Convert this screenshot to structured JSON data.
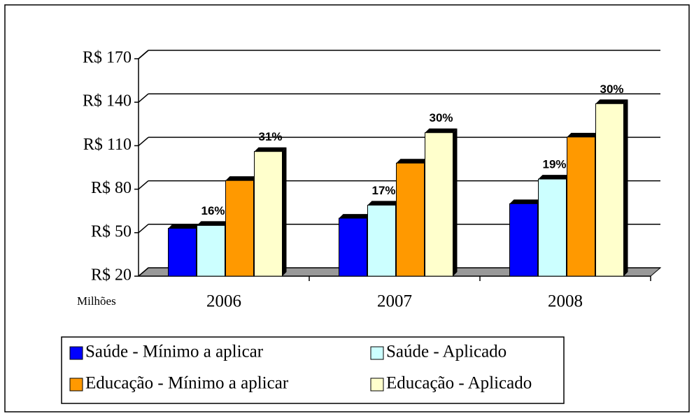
{
  "chart_data": {
    "type": "bar",
    "categories": [
      "2006",
      "2007",
      "2008"
    ],
    "series": [
      {
        "name": "Saúde - Mínimo a aplicar",
        "color": "#0000ff",
        "values": [
          53,
          60,
          70
        ]
      },
      {
        "name": "Saúde - Aplicado",
        "color": "#ccffff",
        "values": [
          55,
          69,
          87
        ],
        "percent_labels": [
          "16%",
          "17%",
          "19%"
        ]
      },
      {
        "name": "Educação - Mínimo a aplicar",
        "color": "#ff9900",
        "values": [
          86,
          98,
          116
        ]
      },
      {
        "name": "Educação - Aplicado",
        "color": "#ffffcc",
        "values": [
          106,
          119,
          139
        ],
        "percent_labels": [
          "31%",
          "30%",
          "30%"
        ]
      }
    ],
    "y_unit_label": "Milhões",
    "ylim": [
      20,
      170
    ],
    "yticks": [
      {
        "value": 20,
        "label": "R$ 20"
      },
      {
        "value": 50,
        "label": "R$ 50"
      },
      {
        "value": 80,
        "label": "R$ 80"
      },
      {
        "value": 110,
        "label": "R$ 110"
      },
      {
        "value": 140,
        "label": "R$ 140"
      },
      {
        "value": 170,
        "label": "R$ 170"
      }
    ],
    "grid": true,
    "legend": "bottom"
  }
}
